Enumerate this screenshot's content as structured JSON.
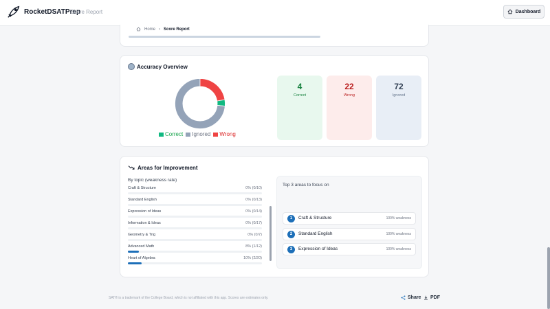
{
  "header": {
    "brand_main": "RocketDSAT",
    "brand_accent": "",
    "brand_end": "Prep",
    "subtitle": "Score Report",
    "dashboard_label": "Dashboard"
  },
  "breadcrumb": {
    "home": "Home",
    "sep": "›",
    "current": "Score Report"
  },
  "accuracy": {
    "title": "Accuracy Overview",
    "correct": {
      "count": "4",
      "label": "Correct"
    },
    "wrong": {
      "count": "22",
      "label": "Wrong"
    },
    "ignored": {
      "count": "72",
      "label": "Ignored"
    },
    "legend": {
      "correct": "Correct",
      "ignored": "Ignored",
      "wrong": "Wrong"
    },
    "colors": {
      "correct": "#10b981",
      "ignored": "#94a3b8",
      "wrong": "#ef4444"
    }
  },
  "chart_data": {
    "type": "pie",
    "categories": [
      "Correct",
      "Ignored",
      "Wrong"
    ],
    "values": [
      4,
      72,
      22
    ]
  },
  "improvement": {
    "title": "Areas for Improvement",
    "by_topic_label": "By topic (weakness rate)",
    "topics": [
      {
        "name": "Craft & Structure",
        "value": "0% (0/10)",
        "rate": 0
      },
      {
        "name": "Standard English",
        "value": "0% (0/13)",
        "rate": 0
      },
      {
        "name": "Expression of Ideas",
        "value": "0% (0/14)",
        "rate": 0
      },
      {
        "name": "Information & Ideas",
        "value": "0% (0/17)",
        "rate": 0
      },
      {
        "name": "Geometry & Trig",
        "value": "0% (0/7)",
        "rate": 0
      },
      {
        "name": "Advanced Math",
        "value": "8% (1/12)",
        "rate": 8
      },
      {
        "name": "Heart of Algebra",
        "value": "10% (2/20)",
        "rate": 10
      }
    ],
    "focus_title": "Top 3 areas to focus on",
    "focus": [
      {
        "rank": "1",
        "name": "Craft & Structure",
        "value": "100% weakness"
      },
      {
        "rank": "2",
        "name": "Standard English",
        "value": "100% weakness"
      },
      {
        "rank": "3",
        "name": "Expression of Ideas",
        "value": "100% weakness"
      }
    ]
  },
  "footer": {
    "note": "SAT® is a trademark of the College Board, which is not affiliated with this app. Scores are estimates only.",
    "share": "Share",
    "pdf": "PDF"
  }
}
